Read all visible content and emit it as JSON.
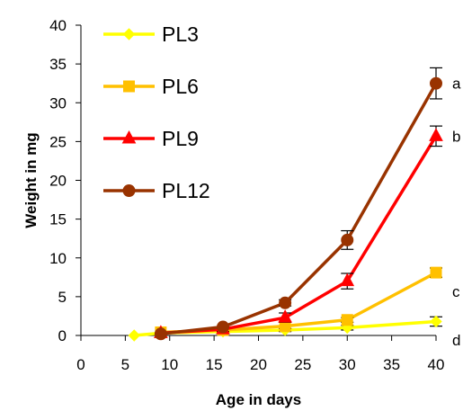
{
  "chart_data": {
    "type": "line",
    "title": "",
    "xlabel": "Age in days",
    "ylabel": "Weight in mg",
    "xlim": [
      0,
      40
    ],
    "ylim": [
      0,
      40
    ],
    "xticks": [
      0,
      5,
      10,
      15,
      20,
      25,
      30,
      35,
      40
    ],
    "yticks": [
      0,
      5,
      10,
      15,
      20,
      25,
      30,
      35,
      40
    ],
    "grid": false,
    "legend_position": "top-left",
    "series": [
      {
        "name": "PL3",
        "color": "#FFFF00",
        "marker": "diamond",
        "x": [
          6,
          9,
          16,
          23,
          30,
          40
        ],
        "y": [
          0.0,
          0.3,
          0.5,
          0.7,
          1.0,
          1.8
        ],
        "error": [
          0,
          0,
          0,
          0.2,
          0.3,
          0.6
        ]
      },
      {
        "name": "PL6",
        "color": "#FFC000",
        "marker": "square",
        "x": [
          9,
          16,
          23,
          30,
          40
        ],
        "y": [
          0.4,
          0.7,
          1.2,
          2.0,
          8.1
        ],
        "error": [
          0,
          0,
          0,
          0.3,
          0.6
        ]
      },
      {
        "name": "PL9",
        "color": "#FF0000",
        "marker": "triangle",
        "x": [
          9,
          16,
          23,
          30,
          40
        ],
        "y": [
          0.3,
          0.8,
          2.3,
          7.0,
          25.7
        ],
        "error": [
          0,
          0.3,
          0.6,
          1.0,
          1.3
        ]
      },
      {
        "name": "PL12",
        "color": "#993300",
        "marker": "circle",
        "x": [
          9,
          16,
          23,
          30,
          40
        ],
        "y": [
          0.2,
          1.1,
          4.2,
          12.3,
          32.5
        ],
        "error": [
          0,
          0,
          0.4,
          1.2,
          2.0
        ]
      }
    ],
    "annotations": [
      {
        "text": "a",
        "x": 40,
        "y": 32.5
      },
      {
        "text": "b",
        "x": 40,
        "y": 25.7
      },
      {
        "text": "c",
        "x": 40,
        "y": 5.7
      },
      {
        "text": "d",
        "x": 40,
        "y": -0.6
      }
    ]
  }
}
